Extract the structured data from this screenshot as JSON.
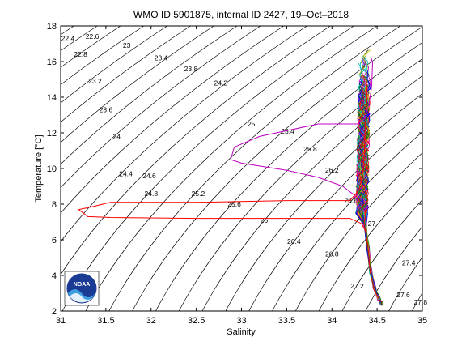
{
  "chart_data": {
    "type": "line",
    "title": "WMO ID 5901875, internal ID 2427, 19–Oct–2018",
    "xlabel": "Salinity",
    "ylabel": "Temperature [°C]",
    "xlim": [
      31,
      35
    ],
    "ylim": [
      2,
      18
    ],
    "xticks": [
      "31",
      "31.5",
      "32",
      "32.5",
      "33",
      "33.5",
      "34",
      "34.5",
      "35"
    ],
    "yticks": [
      "2",
      "4",
      "6",
      "8",
      "10",
      "12",
      "14",
      "16",
      "18"
    ],
    "grid": false,
    "legend": "none",
    "logo": "noaa-logo",
    "colors": {
      "isopycnal": "#000000",
      "red_profile": "#ff0000",
      "magenta_profile": "#c000c0",
      "profile_palette": [
        "#0000ff",
        "#008000",
        "#ff0000",
        "#00bfbf",
        "#bf00bf",
        "#bfbf00",
        "#404040"
      ]
    },
    "isopycnal_labels": [
      {
        "text": "22.4",
        "s": 31.08,
        "t": 17.3
      },
      {
        "text": "22.6",
        "s": 31.35,
        "t": 17.4
      },
      {
        "text": "22.8",
        "s": 31.22,
        "t": 16.4
      },
      {
        "text": "23",
        "s": 31.73,
        "t": 16.9
      },
      {
        "text": "23.2",
        "s": 31.38,
        "t": 14.9
      },
      {
        "text": "23.4",
        "s": 32.11,
        "t": 16.2
      },
      {
        "text": "23.6",
        "s": 31.5,
        "t": 13.3
      },
      {
        "text": "23.8",
        "s": 32.44,
        "t": 15.6
      },
      {
        "text": "24",
        "s": 31.62,
        "t": 11.8
      },
      {
        "text": "24.2",
        "s": 32.77,
        "t": 14.8
      },
      {
        "text": "24.4",
        "s": 31.72,
        "t": 9.7
      },
      {
        "text": "24.6",
        "s": 31.98,
        "t": 9.6
      },
      {
        "text": "24.8",
        "s": 32.0,
        "t": 8.6
      },
      {
        "text": "25",
        "s": 33.11,
        "t": 12.5
      },
      {
        "text": "25.2",
        "s": 32.52,
        "t": 8.6
      },
      {
        "text": "25.4",
        "s": 33.51,
        "t": 12.1
      },
      {
        "text": "25.6",
        "s": 32.92,
        "t": 8.0
      },
      {
        "text": "25.8",
        "s": 33.76,
        "t": 11.1
      },
      {
        "text": "26",
        "s": 33.25,
        "t": 7.1
      },
      {
        "text": "26.2",
        "s": 34.0,
        "t": 9.9
      },
      {
        "text": "26.4",
        "s": 33.58,
        "t": 5.9
      },
      {
        "text": "26.6",
        "s": 34.21,
        "t": 8.2
      },
      {
        "text": "26.8",
        "s": 34.0,
        "t": 5.2
      },
      {
        "text": "27",
        "s": 34.44,
        "t": 6.9
      },
      {
        "text": "27.2",
        "s": 34.28,
        "t": 3.4
      },
      {
        "text": "27.4",
        "s": 34.85,
        "t": 4.7
      },
      {
        "text": "27.6",
        "s": 34.79,
        "t": 2.9
      },
      {
        "text": "27.8",
        "s": 34.98,
        "t": 2.5
      }
    ],
    "series": [
      {
        "color": "#c000c0",
        "s": [
          34.43,
          34.45,
          34.44,
          34.41,
          34.36,
          34.28,
          34.18,
          33.85,
          33.2,
          32.92,
          32.88,
          33.0,
          33.5,
          33.85,
          34.12,
          34.25,
          34.3,
          34.32
        ],
        "t": [
          16.3,
          15.9,
          14.6,
          13.6,
          12.8,
          12.5,
          12.5,
          12.5,
          11.8,
          11.2,
          10.5,
          10.3,
          9.9,
          9.5,
          9.0,
          8.5,
          7.9,
          7.6
        ]
      },
      {
        "color": "#ff0000",
        "s": [
          34.38,
          34.39,
          34.37,
          34.36,
          34.34,
          34.3,
          34.2,
          33.5,
          32.5,
          31.55,
          31.3,
          31.2,
          31.3,
          31.55,
          32.5,
          33.5,
          34.2,
          34.33,
          34.37
        ],
        "t": [
          15.1,
          14.0,
          12.5,
          11.0,
          9.7,
          8.8,
          8.2,
          8.2,
          8.1,
          8.1,
          7.8,
          7.7,
          7.3,
          7.25,
          7.2,
          7.2,
          7.2,
          6.9,
          6.5
        ]
      }
    ],
    "profile_envelope": {
      "upper_s_range": [
        34.25,
        34.58
      ],
      "upper_t_range": [
        7.3,
        16.9
      ],
      "deep_s": [
        34.37,
        34.4,
        34.43,
        34.47,
        34.52,
        34.55
      ],
      "deep_t": [
        6.8,
        5.5,
        4.2,
        3.3,
        2.7,
        2.4
      ]
    }
  }
}
